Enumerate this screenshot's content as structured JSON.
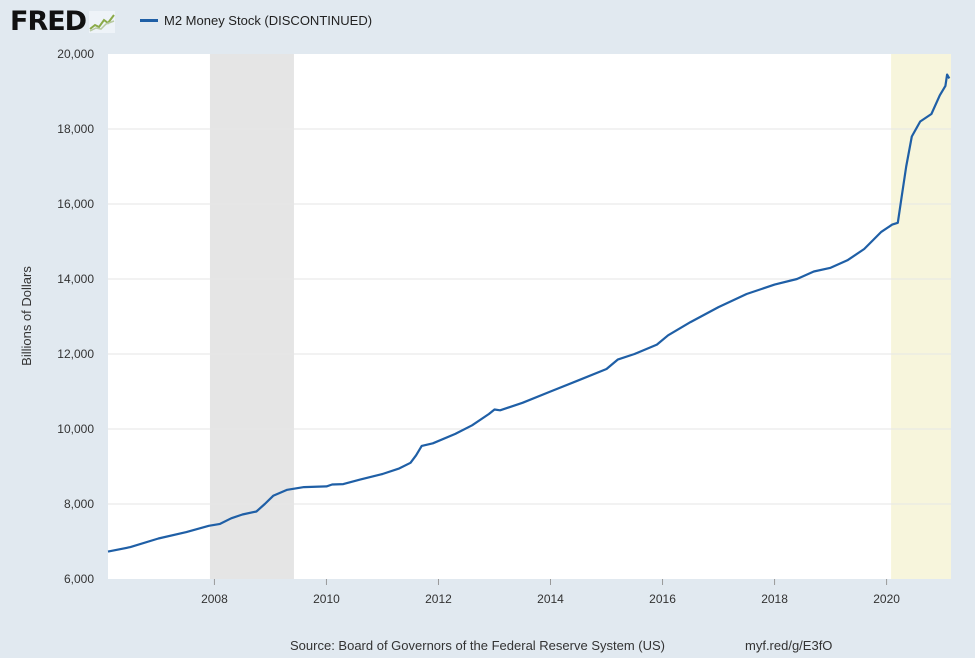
{
  "logo": {
    "text": "FRED"
  },
  "colors": {
    "line": "#1f5fa6",
    "recession": "#e5e5e5",
    "highlight": "#f7f5dc",
    "plot_bg": "#ffffff",
    "page_bg": "#e1e9f0",
    "grid": "#e6e6e6"
  },
  "footer": {
    "source": "Source: Board of Governors of the Federal Reserve System (US)",
    "url": "myf.red/g/E3fO"
  },
  "chart_data": {
    "type": "line",
    "title": "",
    "xlabel": "",
    "ylabel": "Billions of Dollars",
    "xlim": [
      2006.1,
      2021.15
    ],
    "ylim": [
      6000,
      20000
    ],
    "yticks": [
      6000,
      8000,
      10000,
      12000,
      14000,
      16000,
      18000,
      20000
    ],
    "ytick_labels": [
      "6,000",
      "8,000",
      "10,000",
      "12,000",
      "14,000",
      "16,000",
      "18,000",
      "20,000"
    ],
    "xticks": [
      2008,
      2010,
      2012,
      2014,
      2016,
      2018,
      2020
    ],
    "xtick_labels": [
      "2008",
      "2010",
      "2012",
      "2014",
      "2016",
      "2018",
      "2020"
    ],
    "grid": true,
    "legend_position": "top-left",
    "shaded_regions": [
      {
        "kind": "recession",
        "x0": 2007.92,
        "x1": 2009.42
      },
      {
        "kind": "highlight",
        "x0": 2020.08,
        "x1": 2021.15
      }
    ],
    "series": [
      {
        "name": "M2 Money Stock (DISCONTINUED)",
        "color": "#1f5fa6",
        "points": [
          [
            2006.1,
            6730
          ],
          [
            2006.5,
            6850
          ],
          [
            2007.0,
            7080
          ],
          [
            2007.5,
            7250
          ],
          [
            2007.9,
            7420
          ],
          [
            2008.1,
            7470
          ],
          [
            2008.3,
            7620
          ],
          [
            2008.5,
            7720
          ],
          [
            2008.75,
            7800
          ],
          [
            2008.9,
            8000
          ],
          [
            2009.05,
            8220
          ],
          [
            2009.3,
            8380
          ],
          [
            2009.6,
            8450
          ],
          [
            2010.0,
            8470
          ],
          [
            2010.1,
            8520
          ],
          [
            2010.3,
            8530
          ],
          [
            2010.6,
            8650
          ],
          [
            2011.0,
            8800
          ],
          [
            2011.3,
            8950
          ],
          [
            2011.5,
            9100
          ],
          [
            2011.6,
            9300
          ],
          [
            2011.7,
            9550
          ],
          [
            2011.9,
            9620
          ],
          [
            2012.3,
            9870
          ],
          [
            2012.6,
            10100
          ],
          [
            2012.9,
            10400
          ],
          [
            2013.0,
            10520
          ],
          [
            2013.1,
            10500
          ],
          [
            2013.5,
            10700
          ],
          [
            2014.0,
            11000
          ],
          [
            2014.5,
            11300
          ],
          [
            2015.0,
            11600
          ],
          [
            2015.2,
            11850
          ],
          [
            2015.5,
            12000
          ],
          [
            2015.9,
            12250
          ],
          [
            2016.1,
            12500
          ],
          [
            2016.5,
            12850
          ],
          [
            2017.0,
            13250
          ],
          [
            2017.5,
            13600
          ],
          [
            2018.0,
            13850
          ],
          [
            2018.4,
            14000
          ],
          [
            2018.7,
            14200
          ],
          [
            2019.0,
            14300
          ],
          [
            2019.3,
            14500
          ],
          [
            2019.6,
            14800
          ],
          [
            2019.9,
            15250
          ],
          [
            2020.1,
            15450
          ],
          [
            2020.2,
            15500
          ],
          [
            2020.27,
            16200
          ],
          [
            2020.35,
            17000
          ],
          [
            2020.45,
            17800
          ],
          [
            2020.6,
            18200
          ],
          [
            2020.8,
            18400
          ],
          [
            2020.95,
            18900
          ],
          [
            2021.05,
            19150
          ],
          [
            2021.08,
            19450
          ],
          [
            2021.12,
            19350
          ]
        ]
      }
    ]
  }
}
